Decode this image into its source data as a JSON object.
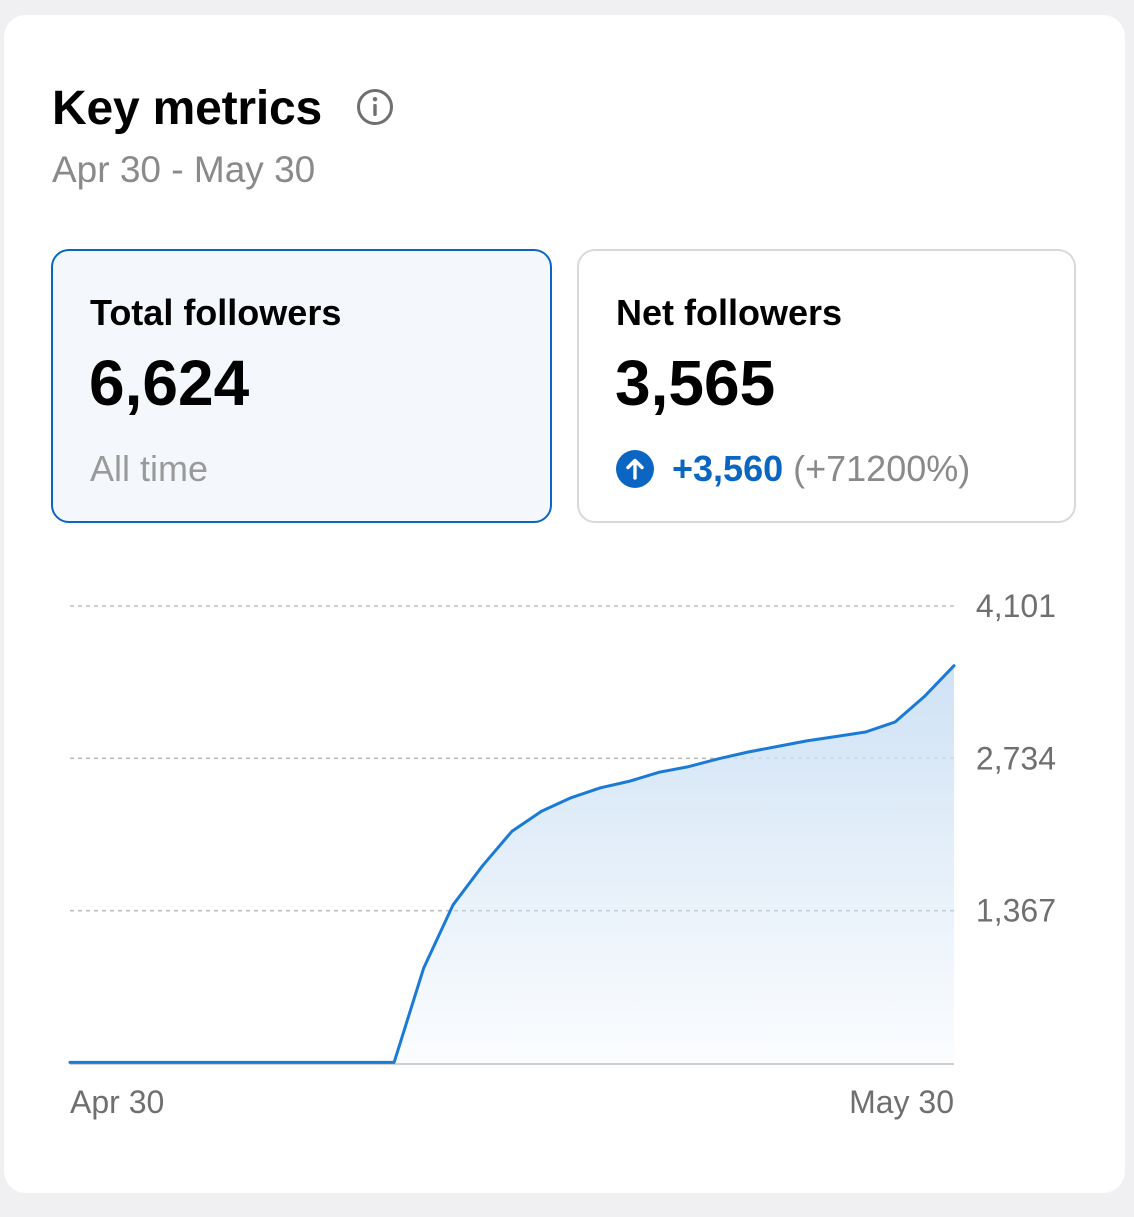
{
  "header": {
    "title": "Key metrics",
    "info_icon": "info-icon",
    "date_range": "Apr 30 - May 30"
  },
  "metrics": {
    "total": {
      "label": "Total followers",
      "value": "6,624",
      "subtext": "All time"
    },
    "net": {
      "label": "Net followers",
      "value": "3,565",
      "change_icon": "arrow-up-circle-icon",
      "change": "+3,560",
      "change_pct": "(+71200%)"
    }
  },
  "colors": {
    "accent": "#0a66c2",
    "line": "#1a7ad6",
    "area_top": "#cfe2f5",
    "grid": "#bdbdbd",
    "tick_text": "#6f6f6f"
  },
  "chart_data": {
    "type": "area",
    "title": "",
    "xlabel": "",
    "ylabel": "",
    "x_tick_labels": [
      "Apr 30",
      "May 30"
    ],
    "y_ticks": [
      {
        "value": 1367,
        "label": "1,367"
      },
      {
        "value": 2734,
        "label": "2,734"
      },
      {
        "value": 4101,
        "label": "4,101"
      }
    ],
    "ylim": [
      0,
      4101
    ],
    "grid": true,
    "legend": "none",
    "series": [
      {
        "values": [
          5,
          5,
          5,
          5,
          5,
          5,
          5,
          5,
          5,
          5,
          5,
          5,
          850,
          1420,
          1770,
          2080,
          2260,
          2380,
          2470,
          2530,
          2610,
          2660,
          2730,
          2790,
          2840,
          2890,
          2930,
          2970,
          3060,
          3290,
          3565
        ]
      }
    ]
  }
}
